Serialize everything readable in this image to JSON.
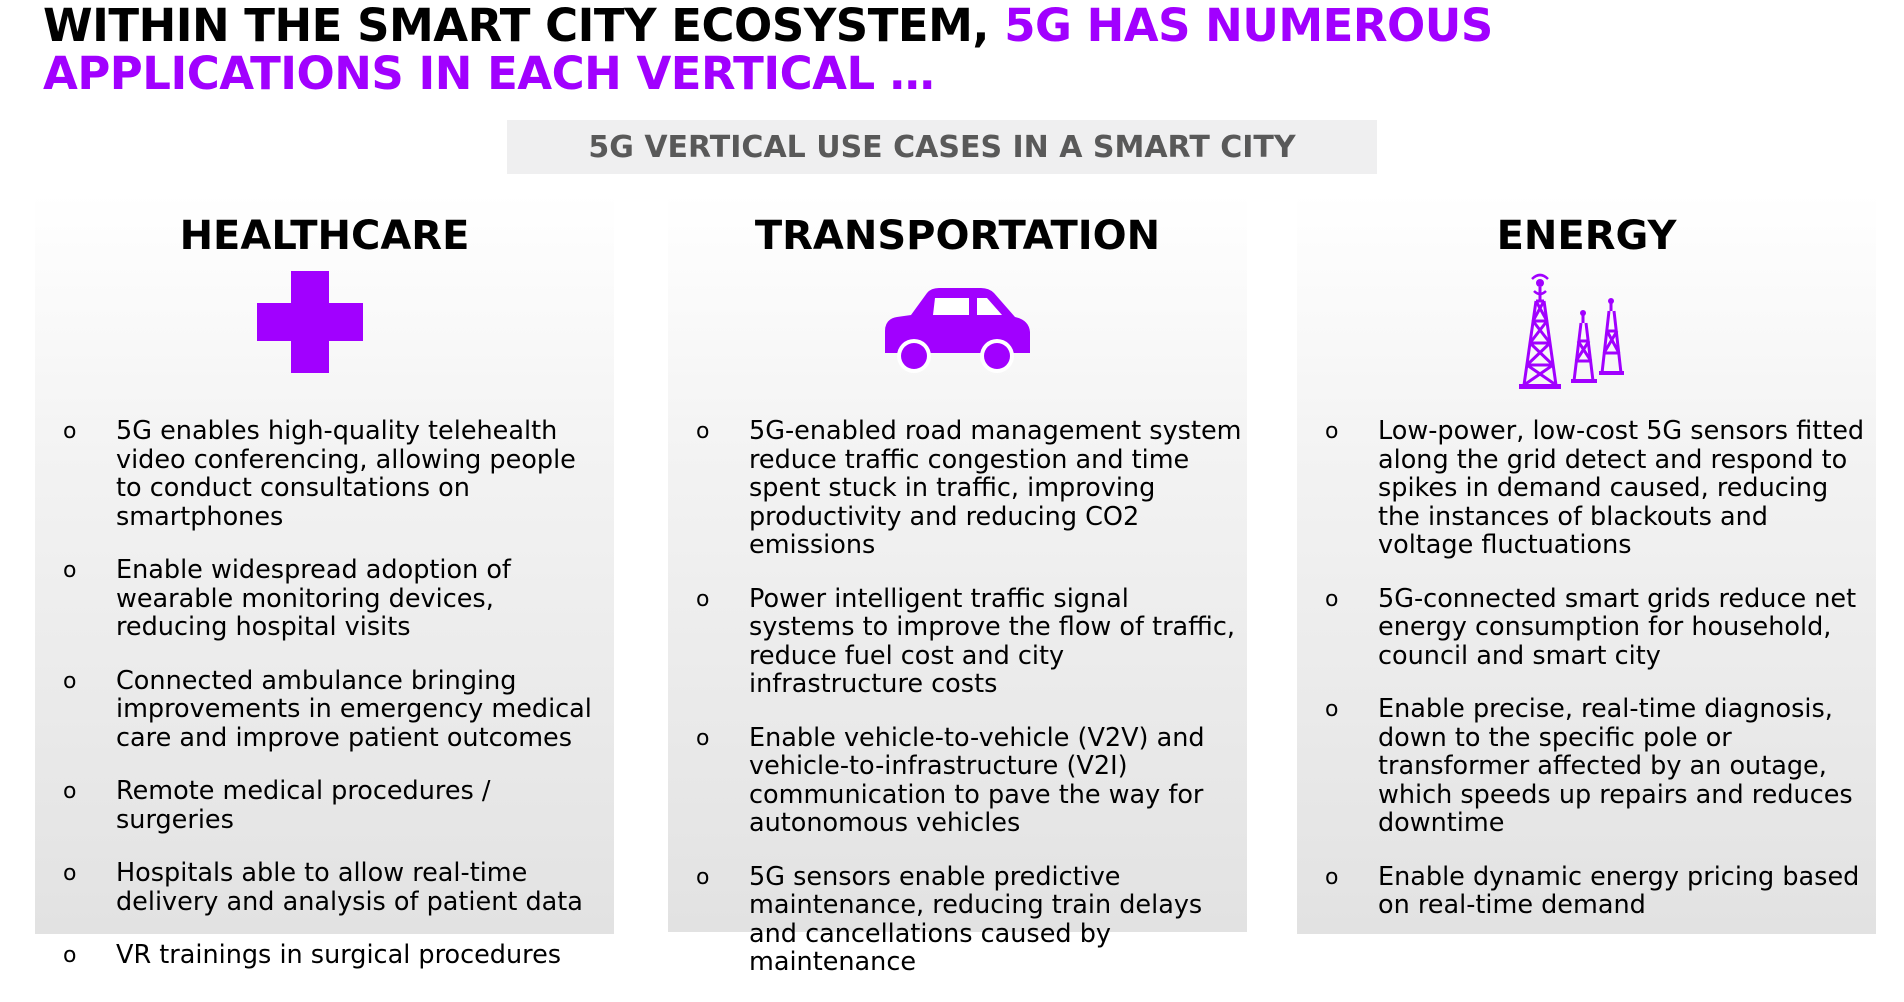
{
  "title": {
    "part1": "WITHIN THE SMART CITY ECOSYSTEM, ",
    "part2": "5G HAS NUMEROUS",
    "line2": "APPLICATIONS IN EACH VERTICAL …"
  },
  "subtitle": "5G VERTICAL USE CASES IN A SMART CITY",
  "colors": {
    "accent": "#a100ff",
    "subtitle_bg": "#efeff0",
    "subtitle_text": "#595959"
  },
  "bullet_char": "o",
  "verticals": [
    {
      "title": "HEALTHCARE",
      "icon": "medical-cross-icon",
      "items": [
        "5G enables high-quality telehealth video conferencing, allowing people to conduct consultations on smartphones",
        "Enable widespread adoption of wearable monitoring devices, reducing hospital visits",
        "Connected ambulance bringing improvements in emergency medical care and improve patient outcomes",
        "Remote medical procedures / surgeries",
        "Hospitals able to allow real-time delivery and analysis of patient data",
        "VR trainings in surgical procedures"
      ]
    },
    {
      "title": "TRANSPORTATION",
      "icon": "car-icon",
      "items": [
        "5G-enabled road management system reduce traffic congestion and time spent stuck in traffic, improving productivity and reducing CO2 emissions",
        "Power intelligent traffic signal systems to improve the flow of traffic, reduce fuel cost and city infrastructure costs",
        "Enable vehicle-to-vehicle (V2V) and vehicle-to-infrastructure (V2I) communication to pave the way for autonomous vehicles",
        "5G sensors enable predictive maintenance, reducing train delays and cancellations caused by maintenance"
      ]
    },
    {
      "title": "ENERGY",
      "icon": "power-tower-icon",
      "items": [
        "Low-power, low-cost 5G sensors fitted along the grid detect and respond to spikes in demand caused, reducing the instances of blackouts and voltage fluctuations",
        "5G-connected smart grids reduce net energy consumption for household, council and smart city",
        "Enable precise, real-time diagnosis, down to the specific pole or transformer affected by an outage, which speeds up repairs and reduces downtime",
        "Enable dynamic energy pricing based on real-time demand"
      ]
    }
  ]
}
